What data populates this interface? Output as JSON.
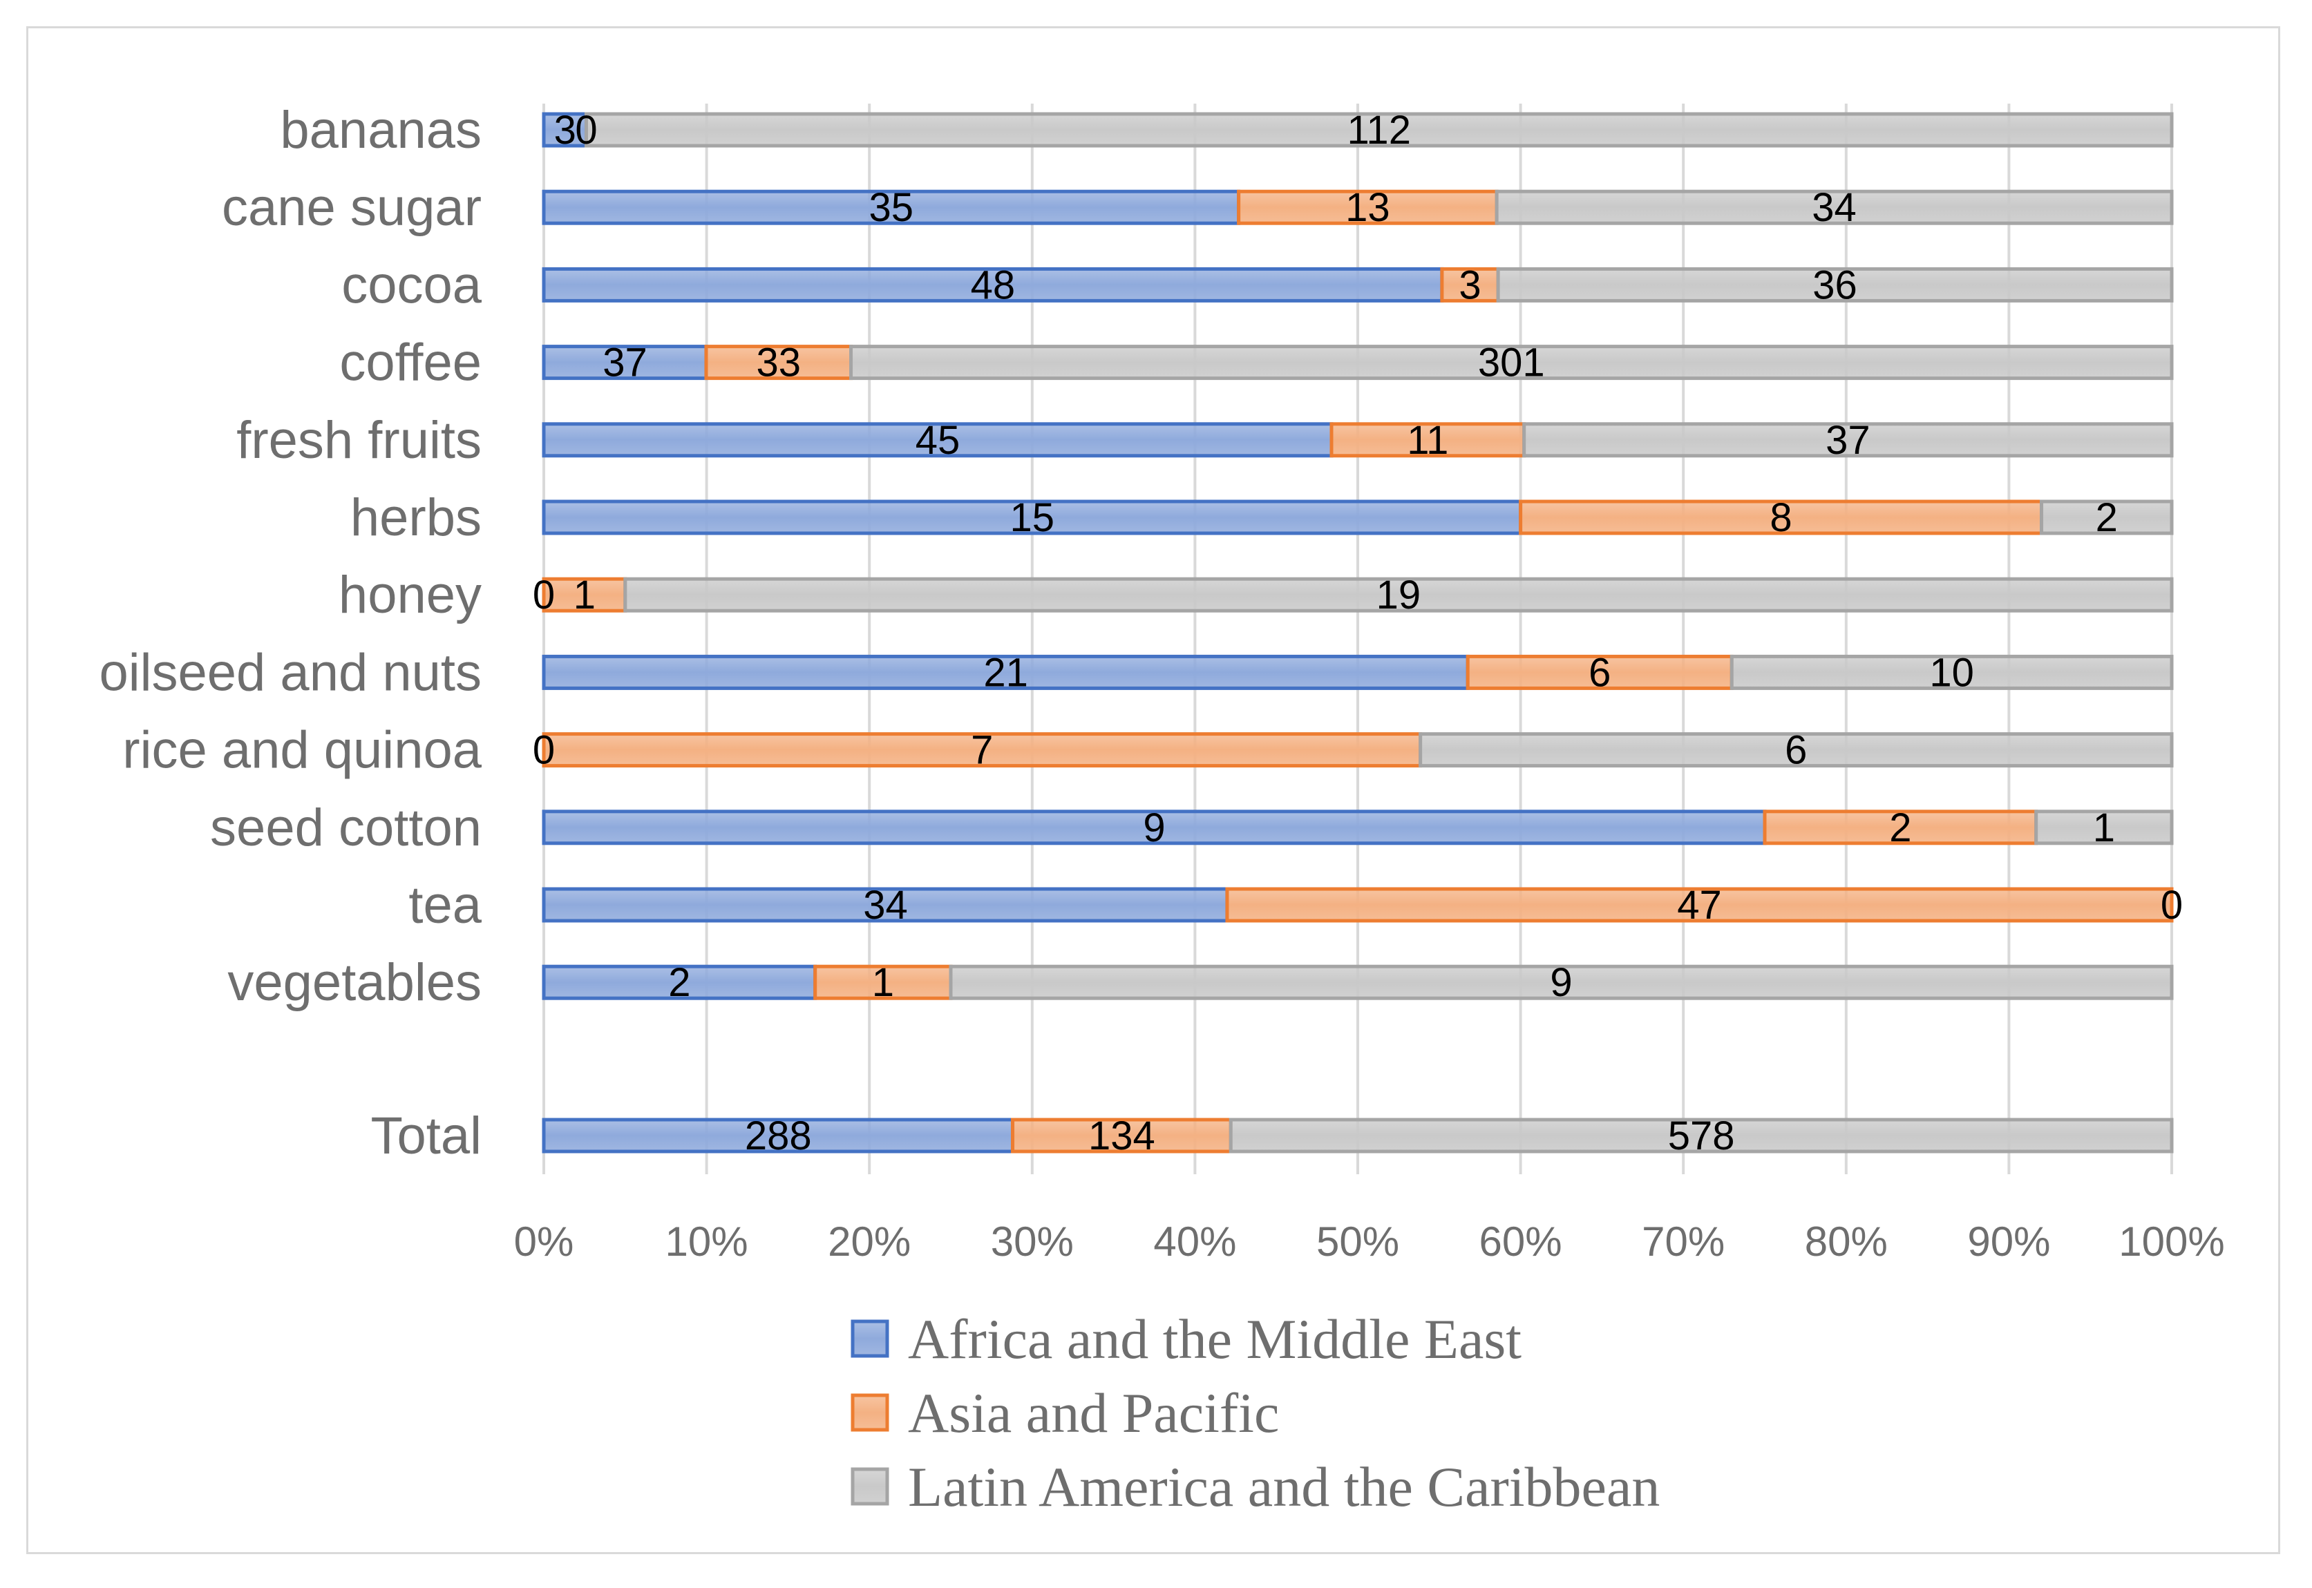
{
  "chart_data": {
    "type": "bar",
    "orientation": "horizontal",
    "stacking": "percent",
    "categories": [
      "bananas",
      "cane sugar",
      "cocoa",
      "coffee",
      "fresh fruits",
      "herbs",
      "honey",
      "oilseed and nuts",
      "rice and quinoa",
      "seed cotton",
      "tea",
      "vegetables",
      "Total"
    ],
    "series": [
      {
        "name": "Africa and the Middle East",
        "color": "#8faadc",
        "border": "#4472c4",
        "values": [
          3,
          35,
          48,
          37,
          45,
          15,
          0,
          21,
          0,
          9,
          34,
          2,
          288
        ],
        "labels": [
          "3",
          "35",
          "48",
          "37",
          "45",
          "15",
          "0",
          "21",
          "0",
          "9",
          "34",
          "2",
          "288"
        ]
      },
      {
        "name": "Asia and Pacific",
        "color": "#f4b183",
        "border": "#ed7d31",
        "values": [
          0,
          13,
          3,
          33,
          11,
          8,
          1,
          6,
          7,
          2,
          47,
          1,
          134
        ],
        "labels": [
          "0",
          "13",
          "3",
          "33",
          "11",
          "8",
          "1",
          "6",
          "7",
          "2",
          "47",
          "1",
          "134"
        ]
      },
      {
        "name": "Latin America and the Caribbean",
        "color": "#c9c9c9",
        "border": "#a5a5a5",
        "values": [
          112,
          34,
          36,
          301,
          37,
          2,
          19,
          10,
          6,
          1,
          0,
          9,
          578
        ],
        "labels": [
          "112",
          "34",
          "36",
          "301",
          "37",
          "2",
          "19",
          "10",
          "6",
          "1",
          "0",
          "9",
          "578"
        ]
      }
    ],
    "x_ticks": [
      "0%",
      "10%",
      "20%",
      "30%",
      "40%",
      "50%",
      "60%",
      "70%",
      "80%",
      "90%",
      "100%"
    ],
    "xlim": [
      0,
      1
    ],
    "grid": "vertical",
    "legend_position": "bottom"
  }
}
